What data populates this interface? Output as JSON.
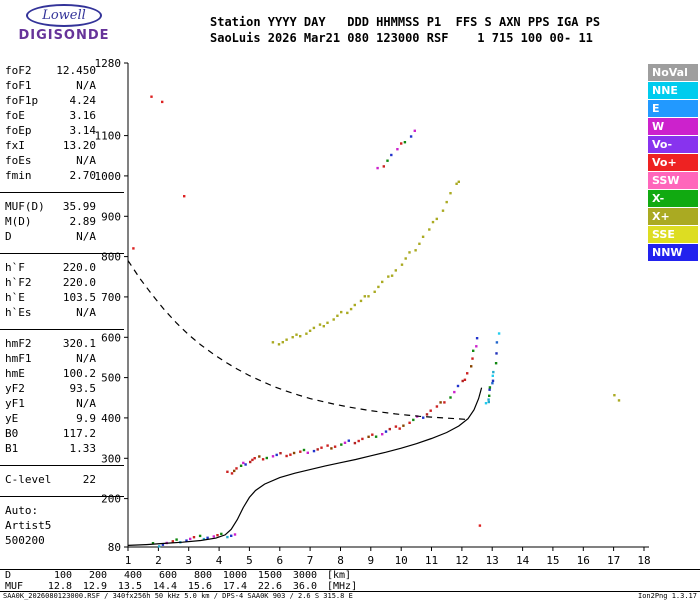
{
  "header": {
    "logo_top": "Lowell",
    "logo_bottom": "DIGISONDE",
    "line1": "Station YYYY DAY   DDD HHMMSS P1  FFS S AXN PPS IGA PS",
    "line2": "SaoLuis 2026 Mar21 080 123000 RSF    1 715 100 00- 11"
  },
  "params": {
    "groups": [
      {
        "rows": [
          {
            "label": "foF2",
            "value": "12.450"
          },
          {
            "label": "foF1",
            "value": "N/A"
          },
          {
            "label": "foF1p",
            "value": "4.24"
          },
          {
            "label": "foE",
            "value": "3.16"
          },
          {
            "label": "foEp",
            "value": "3.14"
          },
          {
            "label": "fxI",
            "value": "13.20"
          },
          {
            "label": "foEs",
            "value": "N/A"
          },
          {
            "label": "fmin",
            "value": "2.70"
          }
        ]
      },
      {
        "rows": [
          {
            "label": "MUF(D)",
            "value": "35.99"
          },
          {
            "label": "M(D)",
            "value": "2.89"
          },
          {
            "label": "D",
            "value": "N/A"
          }
        ]
      },
      {
        "rows": [
          {
            "label": "h`F",
            "value": "220.0"
          },
          {
            "label": "h`F2",
            "value": "220.0"
          },
          {
            "label": "h`E",
            "value": "103.5"
          },
          {
            "label": "h`Es",
            "value": "N/A"
          }
        ]
      },
      {
        "rows": [
          {
            "label": "hmF2",
            "value": "320.1"
          },
          {
            "label": "hmF1",
            "value": "N/A"
          },
          {
            "label": "hmE",
            "value": "100.2"
          },
          {
            "label": "yF2",
            "value": "93.5"
          },
          {
            "label": "yF1",
            "value": "N/A"
          },
          {
            "label": "yE",
            "value": "9.9"
          },
          {
            "label": "B0",
            "value": "117.2"
          },
          {
            "label": "B1",
            "value": "1.33"
          }
        ]
      },
      {
        "rows": [
          {
            "label": "C-level",
            "value": "22"
          }
        ]
      },
      {
        "rows": [
          {
            "label": "Auto:",
            "value": ""
          },
          {
            "label": "Artist5",
            "value": ""
          },
          {
            "label": "500200",
            "value": ""
          }
        ]
      }
    ]
  },
  "legend": {
    "items": [
      {
        "label": "NoVal",
        "color": "#9E9E9E"
      },
      {
        "label": "NNE",
        "color": "#00CCEE"
      },
      {
        "label": "E",
        "color": "#2299FF"
      },
      {
        "label": "W",
        "color": "#CC22CC"
      },
      {
        "label": "Vo-",
        "color": "#8833EE"
      },
      {
        "label": "Vo+",
        "color": "#EE2222"
      },
      {
        "label": "SSW",
        "color": "#FF66BB"
      },
      {
        "label": "X-",
        "color": "#11AA11"
      },
      {
        "label": "X+",
        "color": "#AAAA22"
      },
      {
        "label": "SSE",
        "color": "#DDDD22"
      },
      {
        "label": "NNW",
        "color": "#2222EE"
      }
    ]
  },
  "bottom_table": {
    "rows": [
      {
        "label": "D",
        "values": [
          "100",
          "200",
          "400",
          "600",
          "800",
          "1000",
          "1500",
          "3000"
        ],
        "unit": "[km]"
      },
      {
        "label": "MUF",
        "values": [
          "12.8",
          "12.9",
          "13.5",
          "14.4",
          "15.6",
          "17.4",
          "22.6",
          "36.0"
        ],
        "unit": "[MHz]"
      }
    ]
  },
  "footer": {
    "left": "SAA0K_2026080123000.RSF / 340fx256h 50 kHz 5.0 km / DPS-4 SAA0K 903 / 2.6 S 315.8 E",
    "right": "Ion2Png 1.3.17"
  },
  "chart_data": {
    "type": "scatter",
    "title": "",
    "xlabel": "",
    "ylabel": "",
    "xlim": [
      1,
      18
    ],
    "ylim": [
      80,
      1280
    ],
    "x_ticks": [
      1,
      2,
      3,
      4,
      5,
      6,
      7,
      8,
      9,
      10,
      11,
      12,
      13,
      14,
      15,
      16,
      17,
      18
    ],
    "y_ticks": [
      80,
      200,
      300,
      400,
      500,
      600,
      700,
      800,
      900,
      1000,
      1100,
      1280
    ],
    "grid": false,
    "legend_position": "right",
    "series": [
      {
        "name": "f-trace-ordinary",
        "type": "scatter",
        "palette": [
          "#CC2222",
          "#B22222",
          "#2233CC",
          "#CC22CC",
          "#118811",
          "#CC2222",
          "#884400",
          "#CC2222"
        ],
        "points": [
          [
            4.3,
            262
          ],
          [
            4.4,
            267
          ],
          [
            4.5,
            271
          ],
          [
            4.6,
            275
          ],
          [
            4.7,
            279
          ],
          [
            4.8,
            284
          ],
          [
            4.9,
            289
          ],
          [
            5.0,
            293
          ],
          [
            5.1,
            296
          ],
          [
            5.2,
            298
          ],
          [
            5.3,
            300
          ],
          [
            5.45,
            302
          ],
          [
            5.6,
            303
          ],
          [
            5.75,
            305
          ],
          [
            5.9,
            306
          ],
          [
            6.05,
            308
          ],
          [
            6.2,
            310
          ],
          [
            6.35,
            311
          ],
          [
            6.5,
            313
          ],
          [
            6.65,
            314
          ],
          [
            6.8,
            316
          ],
          [
            6.95,
            318
          ],
          [
            7.1,
            320
          ],
          [
            7.25,
            322
          ],
          [
            7.4,
            324
          ],
          [
            7.55,
            327
          ],
          [
            7.7,
            329
          ],
          [
            7.85,
            331
          ],
          [
            8.0,
            334
          ],
          [
            8.15,
            336
          ],
          [
            8.3,
            339
          ],
          [
            8.45,
            342
          ],
          [
            8.6,
            345
          ],
          [
            8.75,
            348
          ],
          [
            8.9,
            351
          ],
          [
            9.05,
            354
          ],
          [
            9.2,
            358
          ],
          [
            9.35,
            362
          ],
          [
            9.5,
            366
          ],
          [
            9.65,
            370
          ],
          [
            9.8,
            374
          ],
          [
            9.95,
            378
          ],
          [
            10.1,
            383
          ],
          [
            10.25,
            388
          ],
          [
            10.4,
            393
          ],
          [
            10.55,
            399
          ],
          [
            10.7,
            405
          ],
          [
            10.85,
            411
          ],
          [
            11.0,
            418
          ],
          [
            11.15,
            426
          ],
          [
            11.3,
            434
          ],
          [
            11.45,
            443
          ],
          [
            11.6,
            453
          ],
          [
            11.75,
            464
          ],
          [
            11.9,
            477
          ],
          [
            12.0,
            487
          ],
          [
            12.1,
            499
          ],
          [
            12.2,
            513
          ],
          [
            12.28,
            528
          ],
          [
            12.35,
            545
          ],
          [
            12.4,
            562
          ],
          [
            12.45,
            582
          ],
          [
            12.5,
            600
          ]
        ]
      },
      {
        "name": "f-trace-extraordinary",
        "type": "scatter",
        "palette": [
          "#22AACC",
          "#2266CC",
          "#118811",
          "#22CCEE",
          "#2233BB"
        ],
        "points": [
          [
            12.82,
            432
          ],
          [
            12.86,
            444
          ],
          [
            12.9,
            457
          ],
          [
            12.94,
            470
          ],
          [
            12.98,
            484
          ],
          [
            13.02,
            500
          ],
          [
            13.06,
            518
          ],
          [
            13.1,
            538
          ],
          [
            13.14,
            560
          ],
          [
            13.18,
            585
          ],
          [
            13.2,
            605
          ],
          [
            12.88,
            450
          ],
          [
            12.95,
            478
          ],
          [
            13.0,
            492
          ]
        ]
      },
      {
        "name": "second-hop-trace",
        "type": "scatter",
        "palette": [
          "#CC2222",
          "#2233CC",
          "#CC22CC",
          "#118811",
          "#22AAAA",
          "#CC2222",
          "#AAAA22"
        ],
        "points": [
          [
            5.8,
            583
          ],
          [
            5.95,
            587
          ],
          [
            6.1,
            590
          ],
          [
            6.25,
            594
          ],
          [
            6.4,
            598
          ],
          [
            6.55,
            602
          ],
          [
            6.7,
            607
          ],
          [
            6.85,
            611
          ],
          [
            7.0,
            616
          ],
          [
            7.15,
            621
          ],
          [
            7.3,
            627
          ],
          [
            7.45,
            632
          ],
          [
            7.6,
            638
          ],
          [
            7.75,
            644
          ],
          [
            7.9,
            651
          ],
          [
            8.05,
            658
          ],
          [
            8.2,
            665
          ],
          [
            8.35,
            672
          ],
          [
            8.5,
            680
          ],
          [
            8.65,
            688
          ],
          [
            8.8,
            697
          ],
          [
            8.95,
            706
          ],
          [
            9.1,
            715
          ],
          [
            9.25,
            725
          ],
          [
            9.4,
            735
          ],
          [
            9.55,
            746
          ],
          [
            9.7,
            757
          ],
          [
            9.85,
            768
          ],
          [
            10.0,
            780
          ],
          [
            10.15,
            793
          ],
          [
            10.3,
            806
          ],
          [
            10.45,
            820
          ],
          [
            10.6,
            834
          ],
          [
            10.75,
            849
          ],
          [
            10.9,
            865
          ],
          [
            11.05,
            881
          ],
          [
            11.2,
            898
          ],
          [
            11.35,
            916
          ],
          [
            11.5,
            935
          ],
          [
            11.65,
            955
          ],
          [
            11.8,
            976
          ],
          [
            11.9,
            990
          ]
        ]
      },
      {
        "name": "second-hop-upper-trace",
        "type": "scatter",
        "palette": [
          "#CC2222",
          "#CC22CC",
          "#2233CC",
          "#118811"
        ],
        "points": [
          [
            9.25,
            1015
          ],
          [
            9.4,
            1028
          ],
          [
            9.55,
            1040
          ],
          [
            9.7,
            1052
          ],
          [
            9.85,
            1064
          ],
          [
            10.0,
            1076
          ],
          [
            10.15,
            1088
          ],
          [
            10.3,
            1100
          ],
          [
            10.45,
            1112
          ]
        ]
      },
      {
        "name": "e-region-trace",
        "type": "scatter",
        "palette": [
          "#CC2222",
          "#2233CC",
          "#118811",
          "#CC22CC",
          "#22AACC"
        ],
        "points": [
          [
            1.85,
            85
          ],
          [
            2.0,
            86
          ],
          [
            2.15,
            88
          ],
          [
            2.3,
            90
          ],
          [
            2.45,
            92
          ],
          [
            2.6,
            94
          ],
          [
            2.75,
            96
          ],
          [
            2.9,
            98
          ],
          [
            3.05,
            100
          ],
          [
            3.2,
            102
          ],
          [
            3.35,
            103
          ],
          [
            3.5,
            104
          ],
          [
            3.65,
            105
          ],
          [
            3.8,
            106
          ],
          [
            3.95,
            107
          ],
          [
            4.1,
            108
          ],
          [
            4.25,
            109
          ],
          [
            4.4,
            110
          ],
          [
            4.55,
            111
          ]
        ]
      },
      {
        "name": "sporadic-points-red",
        "type": "scatter",
        "palette": [
          "#DD2222"
        ],
        "points": [
          [
            1.8,
            1192
          ],
          [
            2.1,
            1188
          ],
          [
            2.85,
            952
          ],
          [
            12.62,
            133
          ],
          [
            1.15,
            818
          ]
        ]
      },
      {
        "name": "sporadic-points-olive",
        "type": "scatter",
        "palette": [
          "#AAAA22"
        ],
        "points": [
          [
            17.05,
            452
          ],
          [
            17.15,
            448
          ]
        ]
      },
      {
        "name": "true-height-profile",
        "type": "line",
        "style": "solid",
        "color": "#000000",
        "points": [
          [
            1.0,
            84
          ],
          [
            1.6,
            86
          ],
          [
            2.2,
            89
          ],
          [
            2.8,
            92
          ],
          [
            3.4,
            96
          ],
          [
            3.9,
            102
          ],
          [
            4.2,
            110
          ],
          [
            4.4,
            124
          ],
          [
            4.6,
            148
          ],
          [
            4.8,
            178
          ],
          [
            5.0,
            203
          ],
          [
            5.2,
            220
          ],
          [
            5.5,
            236
          ],
          [
            6.0,
            252
          ],
          [
            6.5,
            263
          ],
          [
            7.0,
            272
          ],
          [
            7.5,
            281
          ],
          [
            8.0,
            289
          ],
          [
            8.5,
            297
          ],
          [
            9.0,
            306
          ],
          [
            9.5,
            315
          ],
          [
            10.0,
            325
          ],
          [
            10.5,
            336
          ],
          [
            11.0,
            349
          ],
          [
            11.5,
            364
          ],
          [
            11.9,
            380
          ],
          [
            12.2,
            398
          ],
          [
            12.4,
            420
          ],
          [
            12.55,
            448
          ],
          [
            12.65,
            475
          ]
        ]
      },
      {
        "name": "dashed-curve",
        "type": "line",
        "style": "dashed",
        "color": "#000000",
        "points": [
          [
            1.0,
            790
          ],
          [
            1.4,
            745
          ],
          [
            1.8,
            705
          ],
          [
            2.2,
            668
          ],
          [
            2.6,
            635
          ],
          [
            3.0,
            606
          ],
          [
            3.4,
            581
          ],
          [
            3.8,
            559
          ],
          [
            4.2,
            539
          ],
          [
            4.6,
            521
          ],
          [
            5.0,
            505
          ],
          [
            5.4,
            491
          ],
          [
            5.8,
            478
          ],
          [
            6.2,
            467
          ],
          [
            6.6,
            457
          ],
          [
            7.0,
            448
          ],
          [
            7.4,
            441
          ],
          [
            7.8,
            434
          ],
          [
            8.2,
            428
          ],
          [
            8.6,
            423
          ],
          [
            9.0,
            418
          ],
          [
            9.4,
            414
          ],
          [
            9.8,
            410
          ],
          [
            10.2,
            407
          ],
          [
            10.6,
            404
          ],
          [
            11.0,
            402
          ],
          [
            11.4,
            400
          ],
          [
            11.8,
            398
          ],
          [
            12.2,
            396
          ]
        ]
      }
    ]
  }
}
